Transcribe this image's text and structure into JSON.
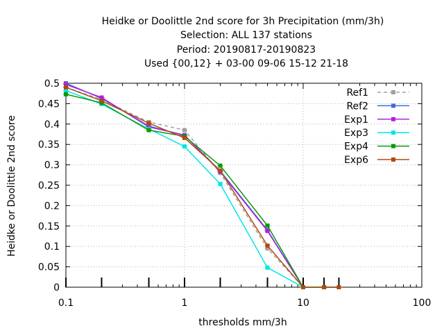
{
  "chart_data": {
    "type": "line",
    "title_lines": [
      "Heidke or Doolittle 2nd score  for 3h Precipitation (mm/3h)",
      "Selection: ALL    137 stations",
      "Period: 20190817-20190823",
      "Used {00,12} + 03-00 09-06 15-12 21-18"
    ],
    "xlabel": "thresholds mm/3h",
    "ylabel": "Heidke or Doolittle 2nd score",
    "xscale": "log",
    "xlim": [
      0.1,
      100
    ],
    "ylim": [
      0,
      0.5
    ],
    "x_ticks": [
      0.1,
      1,
      10,
      100
    ],
    "x_tick_labels": [
      "0.1",
      "1",
      "10",
      "100"
    ],
    "y_ticks": [
      0,
      0.05,
      0.1,
      0.15,
      0.2,
      0.25,
      0.3,
      0.35,
      0.4,
      0.45,
      0.5
    ],
    "y_tick_labels": [
      "0",
      "0.05",
      "0.1",
      "0.15",
      "0.2",
      "0.25",
      "0.3",
      "0.35",
      "0.4",
      "0.45",
      "0.5"
    ],
    "grid": true,
    "legend_position": "top-right",
    "threshold_marks_x": [
      0.1,
      0.2,
      0.5,
      1,
      2,
      5,
      10,
      15,
      20
    ],
    "x": [
      0.1,
      0.2,
      0.5,
      1,
      2,
      5,
      10,
      15,
      20
    ],
    "series": [
      {
        "name": "Ref1",
        "color": "#a0a0a0",
        "dash": true,
        "values": [
          0.49,
          0.46,
          0.405,
          0.385,
          0.28,
          0.095,
          0.0,
          0.0,
          0.0
        ]
      },
      {
        "name": "Ref2",
        "color": "#3b6fd4",
        "dash": false,
        "values": [
          0.5,
          0.463,
          0.395,
          0.372,
          0.285,
          0.14,
          0.0,
          0.0,
          0.0
        ]
      },
      {
        "name": "Exp1",
        "color": "#b020e0",
        "dash": false,
        "values": [
          0.497,
          0.465,
          0.393,
          0.373,
          0.283,
          0.138,
          0.0,
          0.0,
          0.0
        ]
      },
      {
        "name": "Exp3",
        "color": "#00e5e5",
        "dash": false,
        "values": [
          0.482,
          0.449,
          0.388,
          0.345,
          0.253,
          0.048,
          0.0,
          0.0,
          0.0
        ]
      },
      {
        "name": "Exp4",
        "color": "#0a9a0a",
        "dash": false,
        "values": [
          0.473,
          0.452,
          0.385,
          0.37,
          0.298,
          0.151,
          0.0,
          0.0,
          0.0
        ]
      },
      {
        "name": "Exp6",
        "color": "#b04a10",
        "dash": false,
        "values": [
          0.49,
          0.457,
          0.402,
          0.366,
          0.286,
          0.102,
          0.0,
          0.0,
          0.0
        ]
      }
    ]
  }
}
